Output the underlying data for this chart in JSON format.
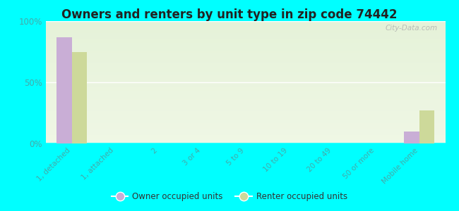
{
  "title": "Owners and renters by unit type in zip code 74442",
  "categories": [
    "1, detached",
    "1, attached",
    "2",
    "3 or 4",
    "5 to 9",
    "10 to 19",
    "20 to 49",
    "50 or more",
    "Mobile home"
  ],
  "owner_values": [
    87,
    0,
    0,
    0,
    0,
    0,
    0,
    0,
    10
  ],
  "renter_values": [
    75,
    0,
    0,
    0,
    0,
    0,
    0,
    0,
    27
  ],
  "owner_color": "#c9aed6",
  "renter_color": "#cdd99a",
  "background_top": "#f0f8e8",
  "background_bottom": "#e8f5d8",
  "outer_background": "#00ffff",
  "ylim": [
    0,
    100
  ],
  "yticks": [
    0,
    50,
    100
  ],
  "ytick_labels": [
    "0%",
    "50%",
    "100%"
  ],
  "bar_width": 0.35,
  "legend_owner": "Owner occupied units",
  "legend_renter": "Renter occupied units",
  "title_fontsize": 12,
  "watermark": "City-Data.com",
  "grid_color": "#ccddcc",
  "tick_color": "#44aaaa",
  "label_color": "#44aaaa"
}
